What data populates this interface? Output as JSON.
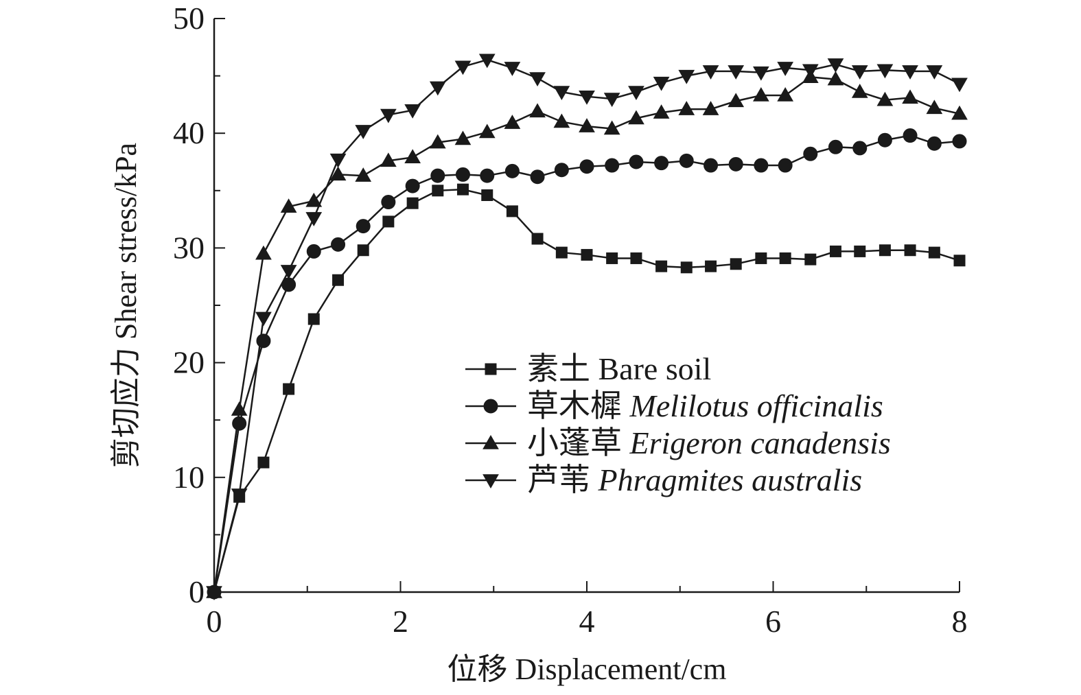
{
  "chart_data": {
    "type": "line",
    "title": "",
    "xlabel": "位移 Displacement/cm",
    "ylabel": "剪切应力 Shear stress/kPa",
    "xlim": [
      0,
      8
    ],
    "ylim": [
      0,
      50
    ],
    "xticks": [
      0,
      2,
      4,
      6,
      8
    ],
    "yticks": [
      0,
      10,
      20,
      30,
      40,
      50
    ],
    "grid": false,
    "legend_position": "center-right",
    "x": [
      0,
      0.27,
      0.53,
      0.8,
      1.07,
      1.33,
      1.6,
      1.87,
      2.13,
      2.4,
      2.67,
      2.93,
      3.2,
      3.47,
      3.73,
      4.0,
      4.27,
      4.53,
      4.8,
      5.07,
      5.33,
      5.6,
      5.87,
      6.13,
      6.4,
      6.67,
      6.93,
      7.2,
      7.47,
      7.73,
      8.0
    ],
    "series": [
      {
        "name_cn": "素土",
        "name": "Bare soil",
        "italic": false,
        "marker": "square",
        "values": [
          0,
          8.3,
          11.3,
          17.7,
          23.8,
          27.2,
          29.8,
          32.3,
          33.9,
          35.0,
          35.1,
          34.6,
          33.2,
          30.8,
          29.6,
          29.4,
          29.1,
          29.1,
          28.4,
          28.3,
          28.4,
          28.6,
          29.1,
          29.1,
          29.0,
          29.7,
          29.7,
          29.8,
          29.8,
          29.6,
          28.9
        ]
      },
      {
        "name_cn": "草木樨",
        "name": "Melilotus officinalis",
        "italic": true,
        "marker": "circle",
        "values": [
          0,
          14.7,
          21.9,
          26.8,
          29.7,
          30.3,
          31.9,
          34.0,
          35.4,
          36.3,
          36.4,
          36.3,
          36.7,
          36.2,
          36.8,
          37.1,
          37.2,
          37.5,
          37.4,
          37.6,
          37.2,
          37.3,
          37.2,
          37.2,
          38.2,
          38.8,
          38.7,
          39.4,
          39.8,
          39.1,
          39.3
        ]
      },
      {
        "name_cn": "小蓬草",
        "name": "Erigeron canadensis",
        "italic": true,
        "marker": "triangle-up",
        "values": [
          0,
          15.9,
          29.5,
          33.6,
          34.1,
          36.4,
          36.3,
          37.6,
          37.9,
          39.2,
          39.5,
          40.1,
          40.9,
          41.9,
          41.0,
          40.6,
          40.4,
          41.3,
          41.8,
          42.1,
          42.1,
          42.8,
          43.3,
          43.3,
          44.9,
          44.7,
          43.6,
          42.9,
          43.1,
          42.2,
          41.7
        ]
      },
      {
        "name_cn": "芦苇",
        "name": "Phragmites australis",
        "italic": true,
        "marker": "triangle-down",
        "values": [
          0,
          8.5,
          23.9,
          28.0,
          32.6,
          37.7,
          40.2,
          41.6,
          42.0,
          44.0,
          45.8,
          46.4,
          45.7,
          44.8,
          43.6,
          43.2,
          43.0,
          43.6,
          44.4,
          45.0,
          45.4,
          45.4,
          45.3,
          45.7,
          45.5,
          46.0,
          45.4,
          45.5,
          45.4,
          45.4,
          44.3
        ]
      }
    ]
  }
}
